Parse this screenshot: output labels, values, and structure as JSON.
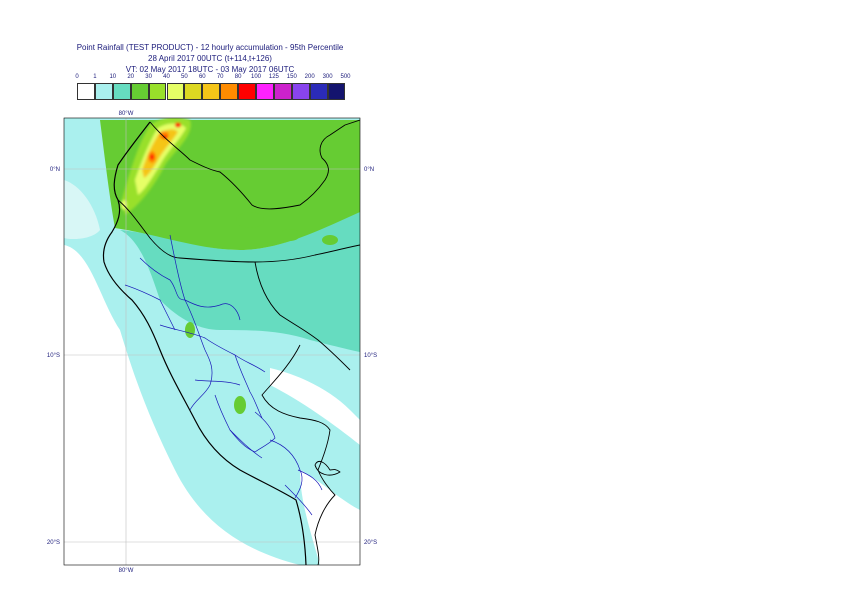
{
  "title": {
    "line1": "Point Rainfall (TEST PRODUCT) - 12 hourly accumulation - 95th Percentile",
    "line2": "28 April 2017 00UTC (t+114,t+126)",
    "line3": "VT: 02 May 2017 18UTC - 03 May 2017 06UTC"
  },
  "legend": {
    "thresholds": [
      "0",
      "1",
      "10",
      "20",
      "30",
      "40",
      "50",
      "60",
      "70",
      "80",
      "100",
      "125",
      "150",
      "200",
      "300",
      "500"
    ],
    "colors": [
      "#ffffff",
      "#aaf0ee",
      "#66dcc0",
      "#66cc33",
      "#99e02a",
      "#e6ff66",
      "#ddd822",
      "#f5c518",
      "#ff8c00",
      "#ff0000",
      "#ff22ff",
      "#cc22cc",
      "#8844ee",
      "#2b2bb8",
      "#14146e"
    ]
  },
  "map": {
    "lon_label_top": "80°W",
    "lon_label_bottom": "80°W",
    "lat_labels": [
      "0°N",
      "10°S",
      "20°S"
    ]
  },
  "colors": {
    "sea": "#aaf0ee",
    "light_green": "#66dcc0",
    "green": "#66cc33",
    "yellow_green": "#99e02a",
    "yellow": "#e6ff66",
    "orange": "#f5c518",
    "red": "#ff0000",
    "coast": "#000000",
    "admin": "#1a1ab8",
    "grid": "#bfbfbf"
  }
}
